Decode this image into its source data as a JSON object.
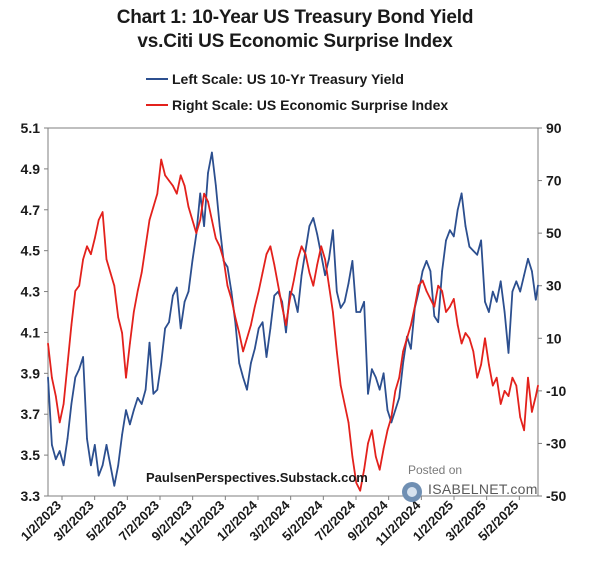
{
  "header": {
    "title_line1": "Chart 1: 10-Year US Treasury Bond Yield",
    "title_line2": "vs.Citi US Economic Surprise Index"
  },
  "watermark": "PaulsenPerspectives.Substack.com",
  "badge": {
    "posted": "Posted on",
    "brand": "ISABELNET.com",
    "logo_icon": "isabelnet-logo-icon"
  },
  "chart_data": {
    "type": "line",
    "x_tick_labels": [
      "1/2/2023",
      "3/2/2023",
      "5/2/2023",
      "7/2/2023",
      "9/2/2023",
      "11/2/2023",
      "1/2/2024",
      "3/2/2024",
      "5/2/2024",
      "7/2/2024",
      "9/2/2024",
      "11/2/2024",
      "1/2/2025",
      "3/2/2025",
      "5/2/2025"
    ],
    "x_range": [
      "2023-01-02",
      "2025-05-30"
    ],
    "left_axis": {
      "range": [
        3.3,
        5.1
      ],
      "ticks": [
        "3.3",
        "3.5",
        "3.7",
        "3.9",
        "4.1",
        "4.3",
        "4.5",
        "4.7",
        "4.9",
        "5.1"
      ]
    },
    "right_axis": {
      "range": [
        -50,
        90
      ],
      "ticks": [
        "-50",
        "-30",
        "-10",
        "10",
        "30",
        "50",
        "70",
        "90"
      ]
    },
    "grid": false,
    "legend_position": "top-left",
    "series": [
      {
        "name": "Left Scale: US 10-Yr Treasury Yield",
        "axis": "left",
        "color": "#2c4f8f",
        "points": [
          [
            "2023-01-02",
            3.88
          ],
          [
            "2023-01-09",
            3.55
          ],
          [
            "2023-01-16",
            3.48
          ],
          [
            "2023-01-23",
            3.52
          ],
          [
            "2023-01-30",
            3.45
          ],
          [
            "2023-02-06",
            3.58
          ],
          [
            "2023-02-13",
            3.75
          ],
          [
            "2023-02-20",
            3.88
          ],
          [
            "2023-02-27",
            3.92
          ],
          [
            "2023-03-06",
            3.98
          ],
          [
            "2023-03-13",
            3.58
          ],
          [
            "2023-03-20",
            3.45
          ],
          [
            "2023-03-27",
            3.55
          ],
          [
            "2023-04-03",
            3.4
          ],
          [
            "2023-04-10",
            3.45
          ],
          [
            "2023-04-17",
            3.55
          ],
          [
            "2023-04-24",
            3.45
          ],
          [
            "2023-05-01",
            3.35
          ],
          [
            "2023-05-08",
            3.45
          ],
          [
            "2023-05-15",
            3.6
          ],
          [
            "2023-05-22",
            3.72
          ],
          [
            "2023-05-29",
            3.65
          ],
          [
            "2023-06-05",
            3.72
          ],
          [
            "2023-06-12",
            3.78
          ],
          [
            "2023-06-19",
            3.75
          ],
          [
            "2023-06-26",
            3.82
          ],
          [
            "2023-07-03",
            4.05
          ],
          [
            "2023-07-10",
            3.8
          ],
          [
            "2023-07-17",
            3.82
          ],
          [
            "2023-07-24",
            3.95
          ],
          [
            "2023-07-31",
            4.12
          ],
          [
            "2023-08-07",
            4.15
          ],
          [
            "2023-08-14",
            4.28
          ],
          [
            "2023-08-21",
            4.32
          ],
          [
            "2023-08-28",
            4.12
          ],
          [
            "2023-09-04",
            4.25
          ],
          [
            "2023-09-11",
            4.3
          ],
          [
            "2023-09-18",
            4.45
          ],
          [
            "2023-09-25",
            4.58
          ],
          [
            "2023-10-02",
            4.78
          ],
          [
            "2023-10-09",
            4.62
          ],
          [
            "2023-10-16",
            4.88
          ],
          [
            "2023-10-23",
            4.98
          ],
          [
            "2023-10-30",
            4.82
          ],
          [
            "2023-11-06",
            4.62
          ],
          [
            "2023-11-13",
            4.45
          ],
          [
            "2023-11-20",
            4.42
          ],
          [
            "2023-11-27",
            4.3
          ],
          [
            "2023-12-04",
            4.15
          ],
          [
            "2023-12-11",
            3.95
          ],
          [
            "2023-12-18",
            3.88
          ],
          [
            "2023-12-25",
            3.82
          ],
          [
            "2024-01-01",
            3.95
          ],
          [
            "2024-01-08",
            4.02
          ],
          [
            "2024-01-15",
            4.12
          ],
          [
            "2024-01-22",
            4.15
          ],
          [
            "2024-01-29",
            3.98
          ],
          [
            "2024-02-05",
            4.12
          ],
          [
            "2024-02-12",
            4.28
          ],
          [
            "2024-02-19",
            4.3
          ],
          [
            "2024-02-26",
            4.25
          ],
          [
            "2024-03-04",
            4.1
          ],
          [
            "2024-03-11",
            4.3
          ],
          [
            "2024-03-18",
            4.28
          ],
          [
            "2024-03-25",
            4.2
          ],
          [
            "2024-04-01",
            4.38
          ],
          [
            "2024-04-08",
            4.5
          ],
          [
            "2024-04-15",
            4.62
          ],
          [
            "2024-04-22",
            4.66
          ],
          [
            "2024-04-29",
            4.58
          ],
          [
            "2024-05-06",
            4.48
          ],
          [
            "2024-05-13",
            4.38
          ],
          [
            "2024-05-20",
            4.46
          ],
          [
            "2024-05-27",
            4.6
          ],
          [
            "2024-06-03",
            4.3
          ],
          [
            "2024-06-10",
            4.22
          ],
          [
            "2024-06-17",
            4.25
          ],
          [
            "2024-06-24",
            4.34
          ],
          [
            "2024-07-01",
            4.45
          ],
          [
            "2024-07-08",
            4.2
          ],
          [
            "2024-07-15",
            4.2
          ],
          [
            "2024-07-22",
            4.25
          ],
          [
            "2024-07-29",
            3.8
          ],
          [
            "2024-08-05",
            3.92
          ],
          [
            "2024-08-12",
            3.88
          ],
          [
            "2024-08-19",
            3.82
          ],
          [
            "2024-08-26",
            3.9
          ],
          [
            "2024-09-02",
            3.72
          ],
          [
            "2024-09-09",
            3.66
          ],
          [
            "2024-09-16",
            3.72
          ],
          [
            "2024-09-23",
            3.78
          ],
          [
            "2024-09-30",
            3.95
          ],
          [
            "2024-10-07",
            4.08
          ],
          [
            "2024-10-14",
            4.02
          ],
          [
            "2024-10-21",
            4.22
          ],
          [
            "2024-10-28",
            4.3
          ],
          [
            "2024-11-04",
            4.4
          ],
          [
            "2024-11-11",
            4.45
          ],
          [
            "2024-11-18",
            4.4
          ],
          [
            "2024-11-25",
            4.18
          ],
          [
            "2024-12-02",
            4.15
          ],
          [
            "2024-12-09",
            4.4
          ],
          [
            "2024-12-16",
            4.55
          ],
          [
            "2024-12-23",
            4.6
          ],
          [
            "2024-12-30",
            4.57
          ],
          [
            "2025-01-06",
            4.7
          ],
          [
            "2025-01-13",
            4.78
          ],
          [
            "2025-01-20",
            4.62
          ],
          [
            "2025-01-27",
            4.52
          ],
          [
            "2025-02-03",
            4.5
          ],
          [
            "2025-02-10",
            4.48
          ],
          [
            "2025-02-17",
            4.55
          ],
          [
            "2025-02-24",
            4.25
          ],
          [
            "2025-03-03",
            4.2
          ],
          [
            "2025-03-10",
            4.3
          ],
          [
            "2025-03-17",
            4.25
          ],
          [
            "2025-03-24",
            4.35
          ],
          [
            "2025-03-31",
            4.2
          ],
          [
            "2025-04-07",
            4.0
          ],
          [
            "2025-04-14",
            4.3
          ],
          [
            "2025-04-21",
            4.35
          ],
          [
            "2025-04-28",
            4.3
          ],
          [
            "2025-05-05",
            4.38
          ],
          [
            "2025-05-12",
            4.46
          ],
          [
            "2025-05-19",
            4.4
          ],
          [
            "2025-05-26",
            4.26
          ],
          [
            "2025-05-30",
            4.33
          ]
        ]
      },
      {
        "name": "Right Scale: US Economic Surprise Index",
        "axis": "right",
        "color": "#e3211c",
        "points": [
          [
            "2023-01-02",
            8
          ],
          [
            "2023-01-09",
            -5
          ],
          [
            "2023-01-16",
            -12
          ],
          [
            "2023-01-23",
            -22
          ],
          [
            "2023-01-30",
            -15
          ],
          [
            "2023-02-06",
            0
          ],
          [
            "2023-02-13",
            15
          ],
          [
            "2023-02-20",
            28
          ],
          [
            "2023-02-27",
            30
          ],
          [
            "2023-03-06",
            40
          ],
          [
            "2023-03-13",
            45
          ],
          [
            "2023-03-20",
            42
          ],
          [
            "2023-03-27",
            48
          ],
          [
            "2023-04-03",
            55
          ],
          [
            "2023-04-10",
            58
          ],
          [
            "2023-04-17",
            40
          ],
          [
            "2023-04-24",
            35
          ],
          [
            "2023-05-01",
            30
          ],
          [
            "2023-05-08",
            18
          ],
          [
            "2023-05-15",
            12
          ],
          [
            "2023-05-22",
            -5
          ],
          [
            "2023-05-29",
            8
          ],
          [
            "2023-06-05",
            20
          ],
          [
            "2023-06-12",
            28
          ],
          [
            "2023-06-19",
            35
          ],
          [
            "2023-06-26",
            45
          ],
          [
            "2023-07-03",
            55
          ],
          [
            "2023-07-10",
            60
          ],
          [
            "2023-07-17",
            65
          ],
          [
            "2023-07-24",
            78
          ],
          [
            "2023-07-31",
            72
          ],
          [
            "2023-08-07",
            70
          ],
          [
            "2023-08-14",
            68
          ],
          [
            "2023-08-21",
            65
          ],
          [
            "2023-08-28",
            72
          ],
          [
            "2023-09-04",
            68
          ],
          [
            "2023-09-11",
            60
          ],
          [
            "2023-09-18",
            55
          ],
          [
            "2023-09-25",
            50
          ],
          [
            "2023-10-02",
            55
          ],
          [
            "2023-10-09",
            65
          ],
          [
            "2023-10-16",
            62
          ],
          [
            "2023-10-23",
            55
          ],
          [
            "2023-10-30",
            48
          ],
          [
            "2023-11-06",
            45
          ],
          [
            "2023-11-13",
            40
          ],
          [
            "2023-11-20",
            30
          ],
          [
            "2023-11-27",
            25
          ],
          [
            "2023-12-04",
            18
          ],
          [
            "2023-12-11",
            12
          ],
          [
            "2023-12-18",
            5
          ],
          [
            "2023-12-25",
            10
          ],
          [
            "2024-01-01",
            15
          ],
          [
            "2024-01-08",
            22
          ],
          [
            "2024-01-15",
            28
          ],
          [
            "2024-01-22",
            35
          ],
          [
            "2024-01-29",
            42
          ],
          [
            "2024-02-05",
            45
          ],
          [
            "2024-02-12",
            38
          ],
          [
            "2024-02-19",
            30
          ],
          [
            "2024-02-26",
            22
          ],
          [
            "2024-03-04",
            15
          ],
          [
            "2024-03-11",
            25
          ],
          [
            "2024-03-18",
            32
          ],
          [
            "2024-03-25",
            40
          ],
          [
            "2024-04-01",
            45
          ],
          [
            "2024-04-08",
            42
          ],
          [
            "2024-04-15",
            35
          ],
          [
            "2024-04-22",
            30
          ],
          [
            "2024-04-29",
            38
          ],
          [
            "2024-05-06",
            45
          ],
          [
            "2024-05-13",
            40
          ],
          [
            "2024-05-20",
            30
          ],
          [
            "2024-05-27",
            20
          ],
          [
            "2024-06-03",
            5
          ],
          [
            "2024-06-10",
            -8
          ],
          [
            "2024-06-17",
            -15
          ],
          [
            "2024-06-24",
            -22
          ],
          [
            "2024-07-01",
            -35
          ],
          [
            "2024-07-08",
            -45
          ],
          [
            "2024-07-15",
            -48
          ],
          [
            "2024-07-22",
            -40
          ],
          [
            "2024-07-29",
            -30
          ],
          [
            "2024-08-05",
            -25
          ],
          [
            "2024-08-12",
            -35
          ],
          [
            "2024-08-19",
            -40
          ],
          [
            "2024-08-26",
            -32
          ],
          [
            "2024-09-02",
            -25
          ],
          [
            "2024-09-09",
            -20
          ],
          [
            "2024-09-16",
            -10
          ],
          [
            "2024-09-23",
            -5
          ],
          [
            "2024-09-30",
            5
          ],
          [
            "2024-10-07",
            10
          ],
          [
            "2024-10-14",
            15
          ],
          [
            "2024-10-21",
            22
          ],
          [
            "2024-10-28",
            30
          ],
          [
            "2024-11-04",
            32
          ],
          [
            "2024-11-11",
            28
          ],
          [
            "2024-11-18",
            25
          ],
          [
            "2024-11-25",
            22
          ],
          [
            "2024-12-02",
            30
          ],
          [
            "2024-12-09",
            28
          ],
          [
            "2024-12-16",
            20
          ],
          [
            "2024-12-23",
            22
          ],
          [
            "2024-12-30",
            25
          ],
          [
            "2025-01-06",
            15
          ],
          [
            "2025-01-13",
            8
          ],
          [
            "2025-01-20",
            12
          ],
          [
            "2025-01-27",
            10
          ],
          [
            "2025-02-03",
            5
          ],
          [
            "2025-02-10",
            -5
          ],
          [
            "2025-02-17",
            0
          ],
          [
            "2025-02-24",
            10
          ],
          [
            "2025-03-03",
            0
          ],
          [
            "2025-03-10",
            -8
          ],
          [
            "2025-03-17",
            -5
          ],
          [
            "2025-03-24",
            -15
          ],
          [
            "2025-03-31",
            -10
          ],
          [
            "2025-04-07",
            -12
          ],
          [
            "2025-04-14",
            -5
          ],
          [
            "2025-04-21",
            -8
          ],
          [
            "2025-04-28",
            -20
          ],
          [
            "2025-05-05",
            -25
          ],
          [
            "2025-05-12",
            -5
          ],
          [
            "2025-05-19",
            -18
          ],
          [
            "2025-05-26",
            -12
          ],
          [
            "2025-05-30",
            -8
          ]
        ]
      }
    ]
  }
}
